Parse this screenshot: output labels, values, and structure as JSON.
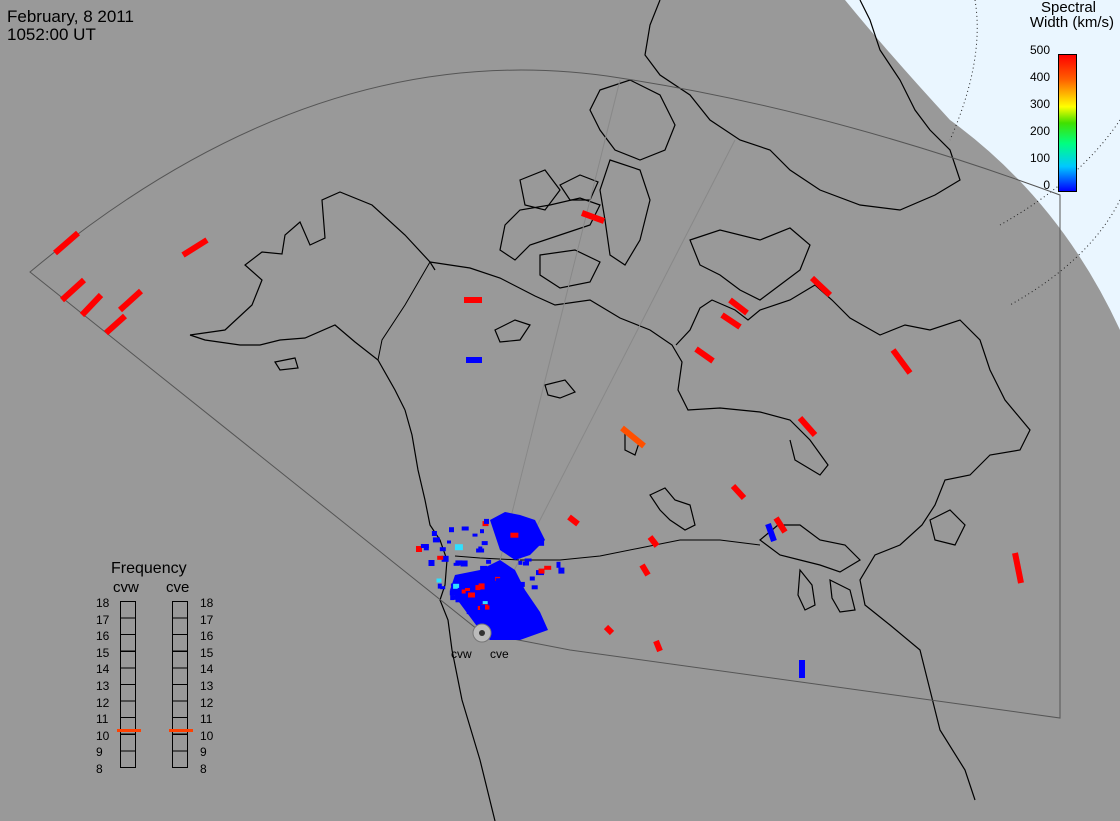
{
  "header": {
    "date": "February, 8 2011",
    "time": "1052:00 UT"
  },
  "colorbar": {
    "title_line1": "Spectral",
    "title_line2": "Width (km/s)",
    "ticks": [
      "500",
      "400",
      "300",
      "200",
      "100",
      "0"
    ],
    "colors": [
      "#0000ff",
      "#00c8ff",
      "#00ff80",
      "#40e000",
      "#ffff00",
      "#ffb000",
      "#ff6000",
      "#ff0000"
    ]
  },
  "radars": [
    {
      "code": "cvw",
      "frequency_mhz": 10.7
    },
    {
      "code": "cve",
      "frequency_mhz": 10.7
    }
  ],
  "frequency_panel": {
    "title": "Frequency",
    "labels": [
      "18",
      "17",
      "16",
      "15",
      "14",
      "13",
      "12",
      "11",
      "10",
      "9",
      "8"
    ]
  },
  "colors": {
    "ocean": "#999999",
    "polar_cap": "#eaf6ff",
    "coastline": "#000000",
    "fov_outline": "#555555",
    "low_width": "#0000ff",
    "high_width": "#ff0000",
    "frequency_marker": "#ff4000"
  }
}
